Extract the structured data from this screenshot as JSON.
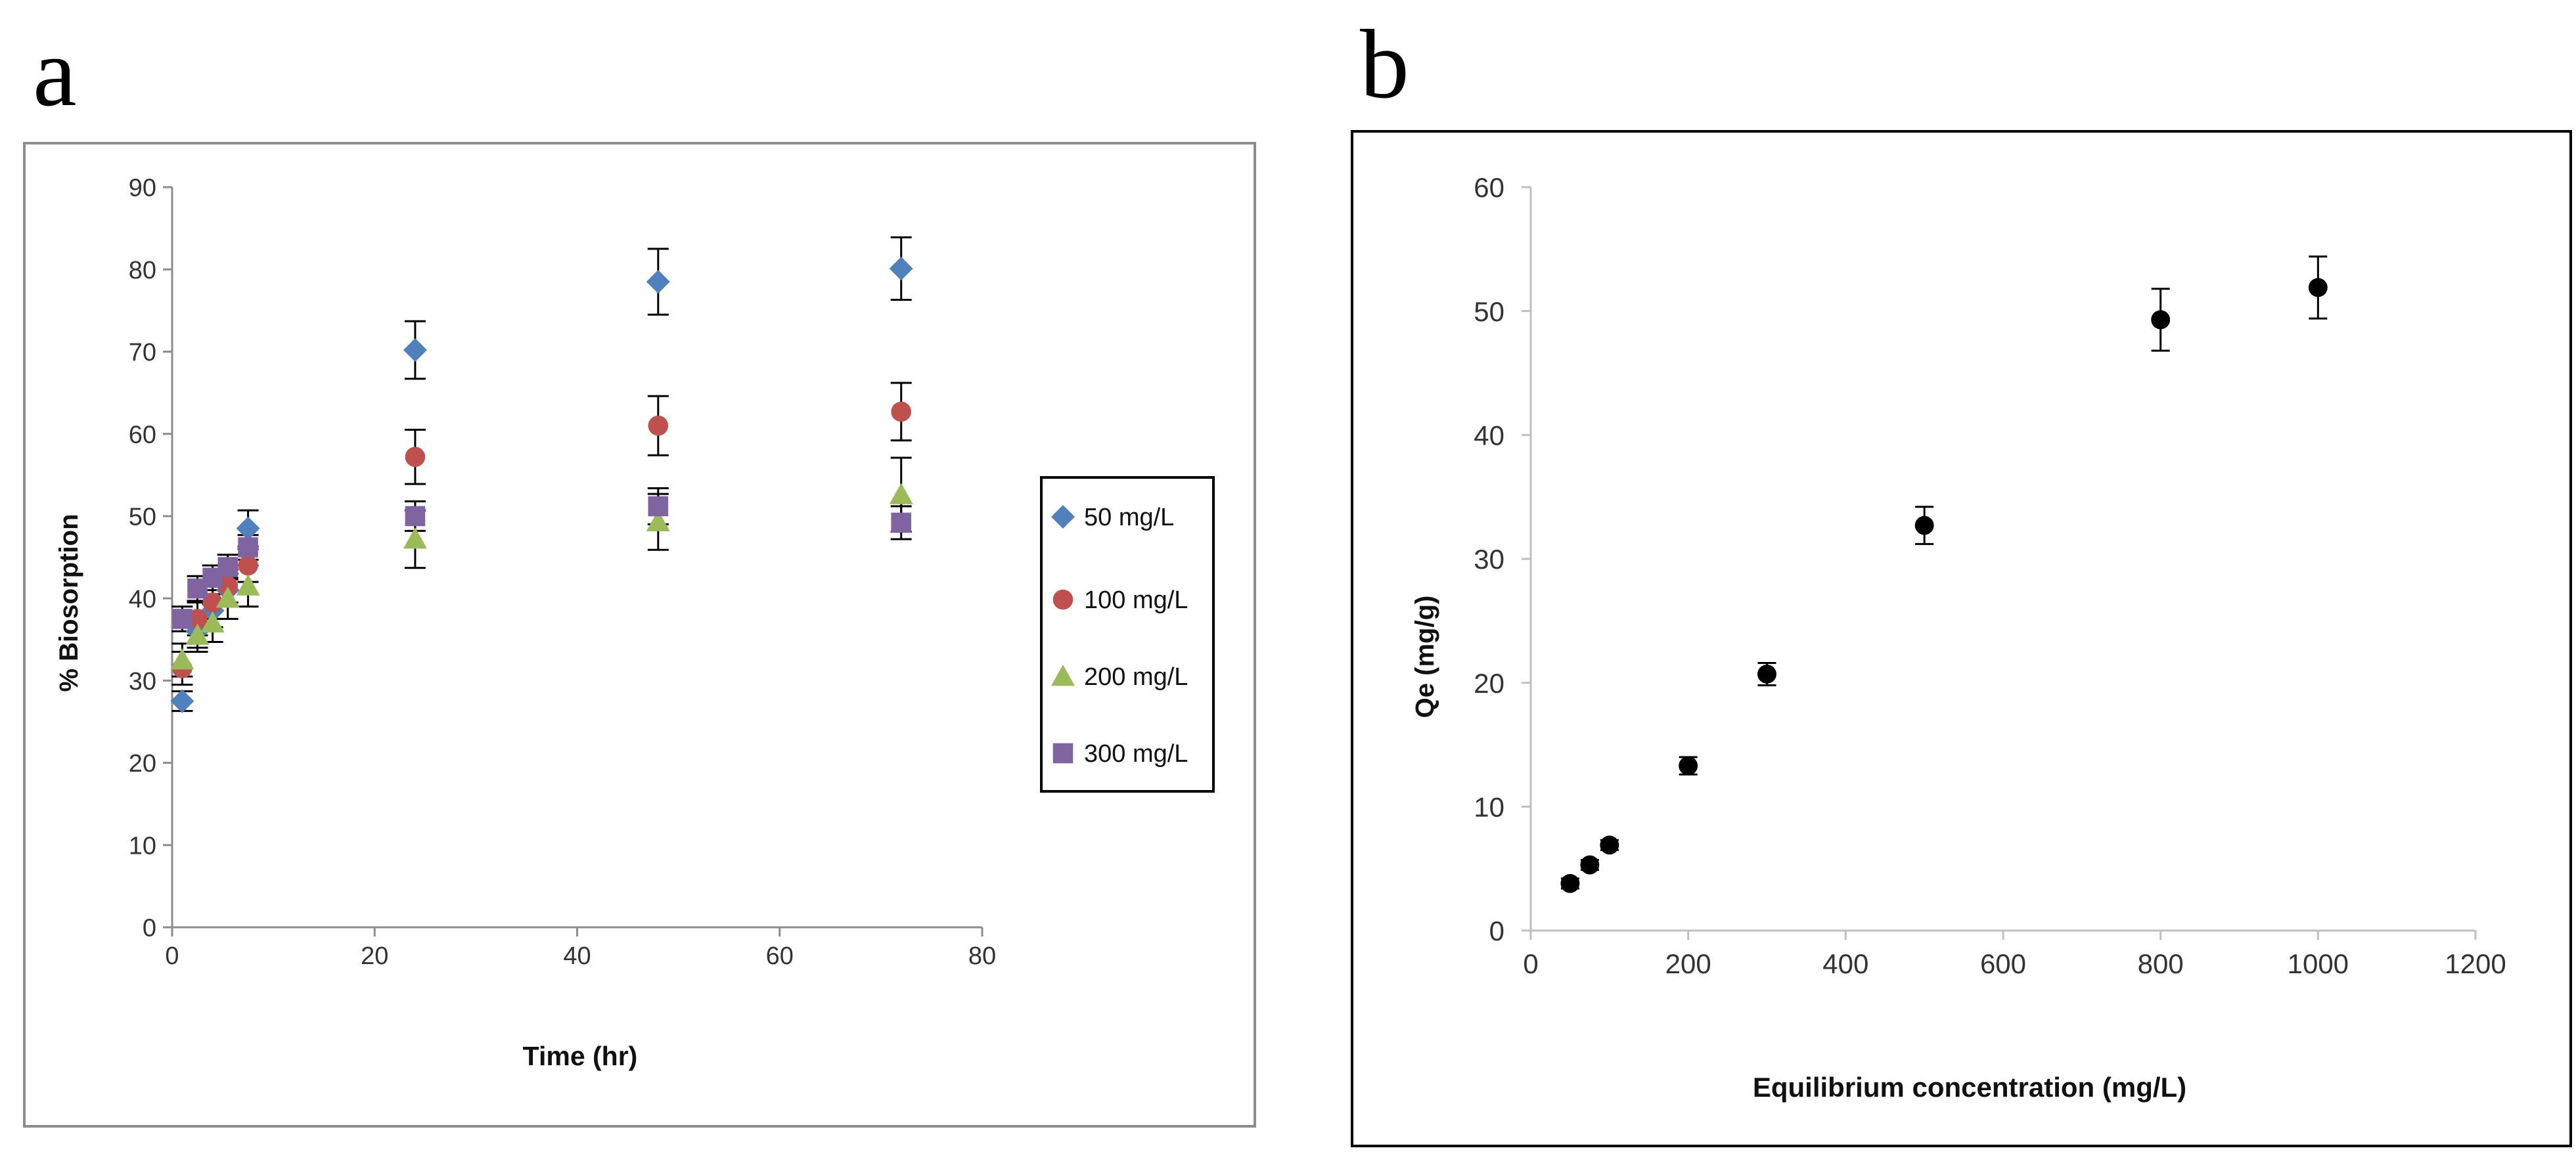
{
  "chart_data": [
    {
      "panel_label": "a",
      "type": "scatter",
      "title": "",
      "xlabel": "Time (hr)",
      "ylabel": "% Biosorption",
      "xlim": [
        0,
        80
      ],
      "ylim": [
        0,
        90
      ],
      "xticks": [
        0,
        20,
        40,
        60,
        80
      ],
      "yticks": [
        0,
        10,
        20,
        30,
        40,
        50,
        60,
        70,
        80,
        90
      ],
      "grid": false,
      "legend_position": "right",
      "series": [
        {
          "name": "50 mg/L",
          "marker": "diamond",
          "color": "#4f81bd",
          "x": [
            1,
            2.5,
            4,
            5.5,
            7.5,
            24,
            48,
            72
          ],
          "y": [
            27.5,
            36,
            38.5,
            41,
            48.5,
            70.2,
            78.5,
            80.1
          ],
          "err": [
            1.2,
            2.0,
            2.0,
            2.0,
            2.2,
            3.5,
            4.0,
            3.8
          ]
        },
        {
          "name": "100 mg/L",
          "marker": "circle",
          "color": "#c0504d",
          "x": [
            1,
            2.5,
            4,
            5.5,
            7.5,
            24,
            48,
            72
          ],
          "y": [
            31.5,
            37.5,
            39.5,
            41.5,
            44,
            57.2,
            61,
            62.7
          ],
          "err": [
            2.0,
            2.0,
            2.0,
            2.0,
            2.0,
            3.3,
            3.6,
            3.5
          ]
        },
        {
          "name": "200 mg/L",
          "marker": "triangle",
          "color": "#9bbb59",
          "x": [
            1,
            2.5,
            4,
            5.5,
            7.5,
            24,
            48,
            72
          ],
          "y": [
            32.5,
            35.5,
            37,
            40,
            41.5,
            47.2,
            49.3,
            52.6
          ],
          "err": [
            2.0,
            2.0,
            2.3,
            2.5,
            2.5,
            3.5,
            3.4,
            4.5
          ]
        },
        {
          "name": "300 mg/L",
          "marker": "square",
          "color": "#8064a2",
          "x": [
            1,
            2.5,
            4,
            5.5,
            7.5,
            24,
            48,
            72
          ],
          "y": [
            37.5,
            41.2,
            42.5,
            43.8,
            46.2,
            50,
            51.2,
            49.2
          ],
          "err": [
            1.5,
            1.5,
            1.5,
            1.5,
            1.5,
            1.8,
            2.2,
            2.0
          ]
        }
      ]
    },
    {
      "panel_label": "b",
      "type": "scatter",
      "title": "",
      "xlabel": "Equilibrium concentration (mg/L)",
      "ylabel": "Qe (mg/g)",
      "xlim": [
        0,
        1200
      ],
      "ylim": [
        0,
        60
      ],
      "xticks": [
        0,
        200,
        400,
        600,
        800,
        1000,
        1200
      ],
      "yticks": [
        0,
        10,
        20,
        30,
        40,
        50,
        60
      ],
      "grid": false,
      "series": [
        {
          "name": "Qe",
          "marker": "circle",
          "color": "#000000",
          "x": [
            50,
            75,
            100,
            200,
            300,
            500,
            800,
            1000
          ],
          "y": [
            3.8,
            5.3,
            6.9,
            13.3,
            20.7,
            32.7,
            49.3,
            51.9
          ],
          "err": [
            0.4,
            0.4,
            0.4,
            0.7,
            0.9,
            1.5,
            2.5,
            2.5
          ]
        }
      ]
    }
  ]
}
